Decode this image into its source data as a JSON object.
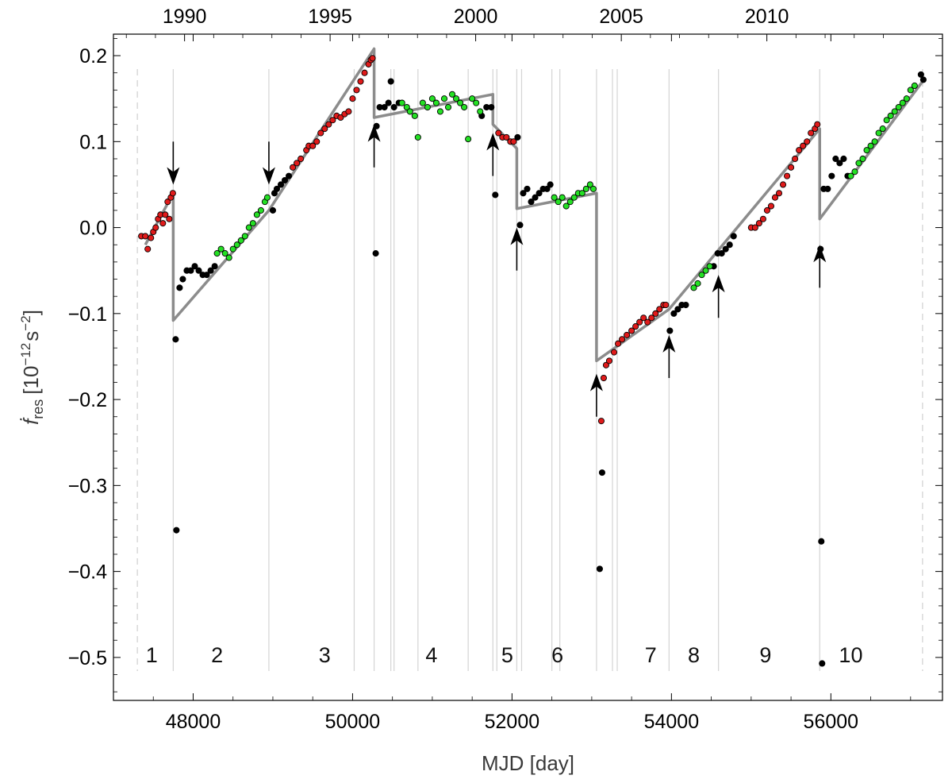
{
  "chart_data": {
    "type": "scatter",
    "title": "",
    "xlabel": "MJD [day]",
    "ylabel_main": "ḟ",
    "ylabel_sub": "res",
    "ylabel_units_open": "[10",
    "ylabel_units_exp1": "−12",
    "ylabel_units_mid": "s",
    "ylabel_units_exp2": "−2",
    "ylabel_units_close": "]",
    "xlim": [
      47000,
      57400
    ],
    "ylim": [
      -0.55,
      0.225
    ],
    "x_ticks": [
      {
        "value": 48000,
        "label": "48000"
      },
      {
        "value": 50000,
        "label": "50000"
      },
      {
        "value": 52000,
        "label": "52000"
      },
      {
        "value": 54000,
        "label": "54000"
      },
      {
        "value": 56000,
        "label": "56000"
      }
    ],
    "top_ticks": [
      {
        "value": 47892,
        "label": "1990"
      },
      {
        "value": 49718,
        "label": "1995"
      },
      {
        "value": 51544,
        "label": "2000"
      },
      {
        "value": 53371,
        "label": "2005"
      },
      {
        "value": 55197,
        "label": "2010"
      }
    ],
    "y_ticks": [
      {
        "value": 0.2,
        "label": "0.2"
      },
      {
        "value": 0.1,
        "label": "0.1"
      },
      {
        "value": 0.0,
        "label": "0.0"
      },
      {
        "value": -0.1,
        "label": "−0.1"
      },
      {
        "value": -0.2,
        "label": "−0.2"
      },
      {
        "value": -0.3,
        "label": "−0.3"
      },
      {
        "value": -0.4,
        "label": "−0.4"
      },
      {
        "value": -0.5,
        "label": "−0.5"
      }
    ],
    "dashed_boundaries": [
      47300,
      57150
    ],
    "vertical_lines": [
      47750,
      48950,
      50020,
      50270,
      50480,
      50520,
      50820,
      51450,
      51760,
      51810,
      52060,
      52120,
      52500,
      52600,
      53060,
      53260,
      53320,
      53970,
      54590,
      55860
    ],
    "segments": [
      {
        "label": "1",
        "x": 47480
      },
      {
        "label": "2",
        "x": 48300
      },
      {
        "label": "3",
        "x": 49650
      },
      {
        "label": "4",
        "x": 50990
      },
      {
        "label": "5",
        "x": 51940
      },
      {
        "label": "6",
        "x": 52570
      },
      {
        "label": "7",
        "x": 53740
      },
      {
        "label": "8",
        "x": 54280
      },
      {
        "label": "9",
        "x": 55180
      },
      {
        "label": "10",
        "x": 56250
      }
    ],
    "arrows_down": [
      {
        "x": 47750,
        "y_from": 0.1,
        "y_to": 0.05
      },
      {
        "x": 48950,
        "y_from": 0.1,
        "y_to": 0.05
      }
    ],
    "arrows_up": [
      {
        "x": 50270,
        "y_from": 0.07,
        "y_to": 0.12
      },
      {
        "x": 51760,
        "y_from": 0.06,
        "y_to": 0.11
      },
      {
        "x": 52060,
        "y_from": -0.05,
        "y_to": 0.0
      },
      {
        "x": 53060,
        "y_from": -0.22,
        "y_to": -0.17
      },
      {
        "x": 53970,
        "y_from": -0.175,
        "y_to": -0.125
      },
      {
        "x": 54590,
        "y_from": -0.105,
        "y_to": -0.055
      },
      {
        "x": 55860,
        "y_from": -0.07,
        "y_to": -0.02
      }
    ],
    "model_line": [
      [
        47400,
        -0.02
      ],
      [
        47750,
        0.04
      ],
      [
        47750,
        -0.108
      ],
      [
        48950,
        0.02
      ],
      [
        50270,
        0.208
      ],
      [
        50270,
        0.128
      ],
      [
        51760,
        0.155
      ],
      [
        51760,
        0.12
      ],
      [
        52060,
        0.092
      ],
      [
        52060,
        0.022
      ],
      [
        53060,
        0.04
      ],
      [
        53060,
        -0.155
      ],
      [
        53970,
        -0.095
      ],
      [
        55860,
        0.115
      ],
      [
        55860,
        0.01
      ],
      [
        57150,
        0.17
      ]
    ],
    "series": [
      {
        "color": "#e01b1b",
        "points": [
          [
            47350,
            -0.01
          ],
          [
            47400,
            -0.01
          ],
          [
            47430,
            -0.025
          ],
          [
            47470,
            -0.012
          ],
          [
            47500,
            -0.005
          ],
          [
            47530,
            0.0
          ],
          [
            47560,
            0.01
          ],
          [
            47590,
            0.015
          ],
          [
            47620,
            0.005
          ],
          [
            47650,
            0.015
          ],
          [
            47680,
            0.03
          ],
          [
            47700,
            0.01
          ],
          [
            47720,
            0.035
          ],
          [
            47745,
            0.04
          ],
          [
            49250,
            0.07
          ],
          [
            49300,
            0.075
          ],
          [
            49350,
            0.08
          ],
          [
            49420,
            0.09
          ],
          [
            49450,
            0.095
          ],
          [
            49500,
            0.095
          ],
          [
            49550,
            0.1
          ],
          [
            49600,
            0.11
          ],
          [
            49650,
            0.115
          ],
          [
            49700,
            0.12
          ],
          [
            49750,
            0.125
          ],
          [
            49800,
            0.13
          ],
          [
            49850,
            0.128
          ],
          [
            49900,
            0.132
          ],
          [
            49950,
            0.135
          ],
          [
            50000,
            0.15
          ],
          [
            50050,
            0.16
          ],
          [
            50100,
            0.17
          ],
          [
            50150,
            0.18
          ],
          [
            50200,
            0.19
          ],
          [
            50230,
            0.195
          ],
          [
            50250,
            0.197
          ],
          [
            51830,
            0.11
          ],
          [
            51880,
            0.105
          ],
          [
            51930,
            0.105
          ],
          [
            51980,
            0.1
          ],
          [
            52020,
            0.1
          ],
          [
            53120,
            -0.225
          ],
          [
            53150,
            -0.175
          ],
          [
            53180,
            -0.16
          ],
          [
            53220,
            -0.155
          ],
          [
            53280,
            -0.145
          ],
          [
            53330,
            -0.135
          ],
          [
            53380,
            -0.13
          ],
          [
            53440,
            -0.125
          ],
          [
            53500,
            -0.12
          ],
          [
            53550,
            -0.115
          ],
          [
            53600,
            -0.11
          ],
          [
            53650,
            -0.105
          ],
          [
            53700,
            -0.11
          ],
          [
            53750,
            -0.105
          ],
          [
            53800,
            -0.1
          ],
          [
            53850,
            -0.095
          ],
          [
            53900,
            -0.09
          ],
          [
            53930,
            -0.09
          ],
          [
            55000,
            0.0
          ],
          [
            55050,
            0.0
          ],
          [
            55100,
            0.005
          ],
          [
            55150,
            0.01
          ],
          [
            55200,
            0.02
          ],
          [
            55250,
            0.025
          ],
          [
            55300,
            0.035
          ],
          [
            55350,
            0.04
          ],
          [
            55400,
            0.05
          ],
          [
            55450,
            0.06
          ],
          [
            55500,
            0.07
          ],
          [
            55550,
            0.08
          ],
          [
            55600,
            0.09
          ],
          [
            55650,
            0.095
          ],
          [
            55700,
            0.1
          ],
          [
            55750,
            0.11
          ],
          [
            55800,
            0.115
          ],
          [
            55830,
            0.12
          ]
        ]
      },
      {
        "color": "#000000",
        "points": [
          [
            47780,
            -0.13
          ],
          [
            47790,
            -0.352
          ],
          [
            47830,
            -0.07
          ],
          [
            47870,
            -0.06
          ],
          [
            47920,
            -0.05
          ],
          [
            47970,
            -0.05
          ],
          [
            48020,
            -0.045
          ],
          [
            48070,
            -0.05
          ],
          [
            48120,
            -0.055
          ],
          [
            48170,
            -0.055
          ],
          [
            48220,
            -0.05
          ],
          [
            48270,
            -0.045
          ],
          [
            49000,
            0.02
          ],
          [
            49020,
            0.04
          ],
          [
            49050,
            0.045
          ],
          [
            49100,
            0.05
          ],
          [
            49150,
            0.055
          ],
          [
            49200,
            0.06
          ],
          [
            50290,
            -0.03
          ],
          [
            50300,
            0.118
          ],
          [
            50340,
            0.14
          ],
          [
            50400,
            0.14
          ],
          [
            50450,
            0.145
          ],
          [
            50480,
            0.17
          ],
          [
            50520,
            0.14
          ],
          [
            50580,
            0.145
          ],
          [
            51620,
            0.13
          ],
          [
            51680,
            0.14
          ],
          [
            51740,
            0.14
          ],
          [
            51790,
            0.038
          ],
          [
            52070,
            0.105
          ],
          [
            52100,
            0.003
          ],
          [
            52140,
            0.04
          ],
          [
            52190,
            0.045
          ],
          [
            52240,
            0.03
          ],
          [
            52290,
            0.035
          ],
          [
            52340,
            0.04
          ],
          [
            52390,
            0.045
          ],
          [
            52440,
            0.045
          ],
          [
            52480,
            0.05
          ],
          [
            53100,
            -0.397
          ],
          [
            53130,
            -0.285
          ],
          [
            53980,
            -0.12
          ],
          [
            54030,
            -0.1
          ],
          [
            54080,
            -0.095
          ],
          [
            54130,
            -0.09
          ],
          [
            54180,
            -0.09
          ],
          [
            54530,
            -0.045
          ],
          [
            54580,
            -0.03
          ],
          [
            54630,
            -0.03
          ],
          [
            54680,
            -0.025
          ],
          [
            54730,
            -0.02
          ],
          [
            54780,
            -0.01
          ],
          [
            55870,
            -0.025
          ],
          [
            55880,
            -0.365
          ],
          [
            55890,
            -0.507
          ],
          [
            55910,
            0.045
          ],
          [
            55960,
            0.045
          ],
          [
            56010,
            0.06
          ],
          [
            56060,
            0.08
          ],
          [
            56110,
            0.075
          ],
          [
            56160,
            0.08
          ],
          [
            56210,
            0.06
          ],
          [
            57130,
            0.178
          ],
          [
            57160,
            0.172
          ]
        ]
      },
      {
        "color": "#24e024",
        "points": [
          [
            48300,
            -0.03
          ],
          [
            48350,
            -0.025
          ],
          [
            48400,
            -0.03
          ],
          [
            48450,
            -0.035
          ],
          [
            48500,
            -0.025
          ],
          [
            48550,
            -0.02
          ],
          [
            48600,
            -0.015
          ],
          [
            48650,
            -0.01
          ],
          [
            48700,
            0.0
          ],
          [
            48750,
            0.005
          ],
          [
            48800,
            0.015
          ],
          [
            48850,
            0.02
          ],
          [
            48900,
            0.03
          ],
          [
            48930,
            0.035
          ],
          [
            50620,
            0.145
          ],
          [
            50680,
            0.14
          ],
          [
            50720,
            0.135
          ],
          [
            50780,
            0.13
          ],
          [
            50820,
            0.105
          ],
          [
            50880,
            0.145
          ],
          [
            50940,
            0.14
          ],
          [
            51000,
            0.15
          ],
          [
            51050,
            0.145
          ],
          [
            51100,
            0.135
          ],
          [
            51150,
            0.15
          ],
          [
            51200,
            0.14
          ],
          [
            51250,
            0.155
          ],
          [
            51300,
            0.15
          ],
          [
            51350,
            0.145
          ],
          [
            51400,
            0.14
          ],
          [
            51450,
            0.103
          ],
          [
            51500,
            0.15
          ],
          [
            51550,
            0.145
          ],
          [
            51600,
            0.135
          ],
          [
            52530,
            0.035
          ],
          [
            52580,
            0.03
          ],
          [
            52630,
            0.035
          ],
          [
            52680,
            0.025
          ],
          [
            52730,
            0.03
          ],
          [
            52780,
            0.035
          ],
          [
            52830,
            0.04
          ],
          [
            52880,
            0.04
          ],
          [
            52930,
            0.045
          ],
          [
            52980,
            0.05
          ],
          [
            53020,
            0.045
          ],
          [
            54280,
            -0.07
          ],
          [
            54330,
            -0.065
          ],
          [
            54380,
            -0.055
          ],
          [
            54430,
            -0.05
          ],
          [
            54480,
            -0.045
          ],
          [
            56250,
            0.06
          ],
          [
            56300,
            0.065
          ],
          [
            56350,
            0.075
          ],
          [
            56400,
            0.08
          ],
          [
            56450,
            0.09
          ],
          [
            56500,
            0.095
          ],
          [
            56550,
            0.1
          ],
          [
            56600,
            0.11
          ],
          [
            56650,
            0.115
          ],
          [
            56700,
            0.125
          ],
          [
            56750,
            0.13
          ],
          [
            56800,
            0.135
          ],
          [
            56850,
            0.14
          ],
          [
            56900,
            0.145
          ],
          [
            56950,
            0.15
          ],
          [
            57000,
            0.16
          ],
          [
            57050,
            0.165
          ]
        ]
      }
    ]
  }
}
